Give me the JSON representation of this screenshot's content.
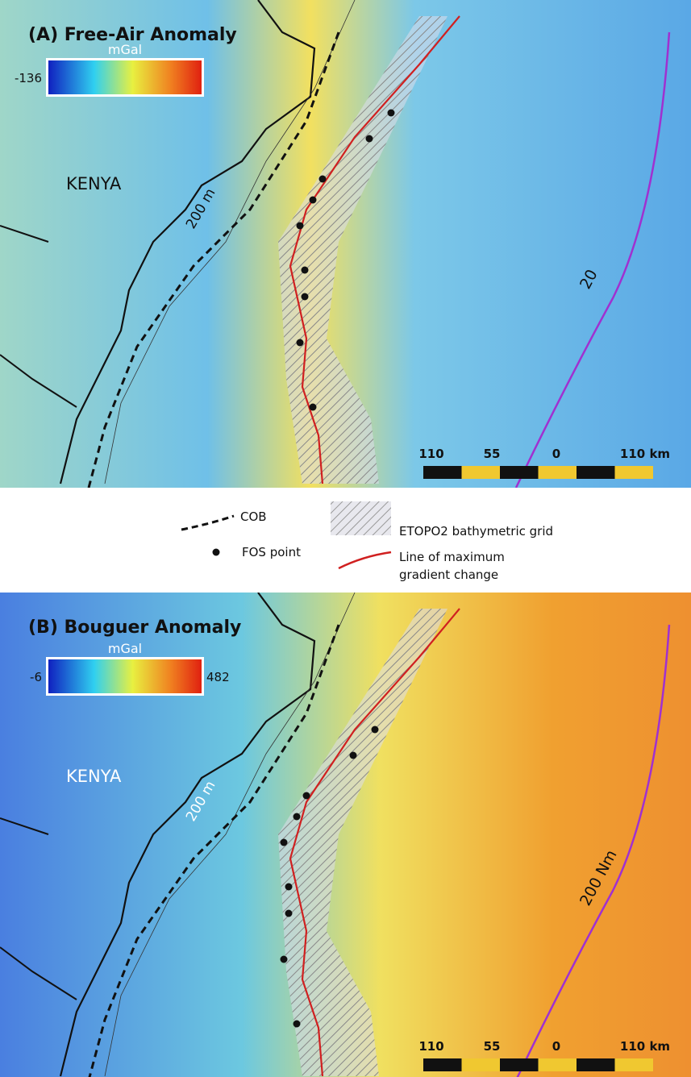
{
  "panels": [
    {
      "title": "(A) Free-Air Anomaly",
      "unit": "mGal",
      "min_label": "-136",
      "country": "KENYA",
      "isobath": "200 m",
      "limit": "20",
      "scale": [
        "110",
        "55",
        "0",
        "110 km"
      ]
    },
    {
      "title": "(B) Bouguer Anomaly",
      "unit": "mGal",
      "min_label": "-6",
      "max_label": "482",
      "country": "KENYA",
      "isobath": "200 m",
      "limit": "200 Nm",
      "scale": [
        "110",
        "55",
        "0",
        "110 km"
      ]
    }
  ],
  "legend": {
    "cob": "COB",
    "fos": "FOS point",
    "etopo": "ETOPO2 bathymetric grid",
    "gradient": "Line of maximum gradient change"
  }
}
